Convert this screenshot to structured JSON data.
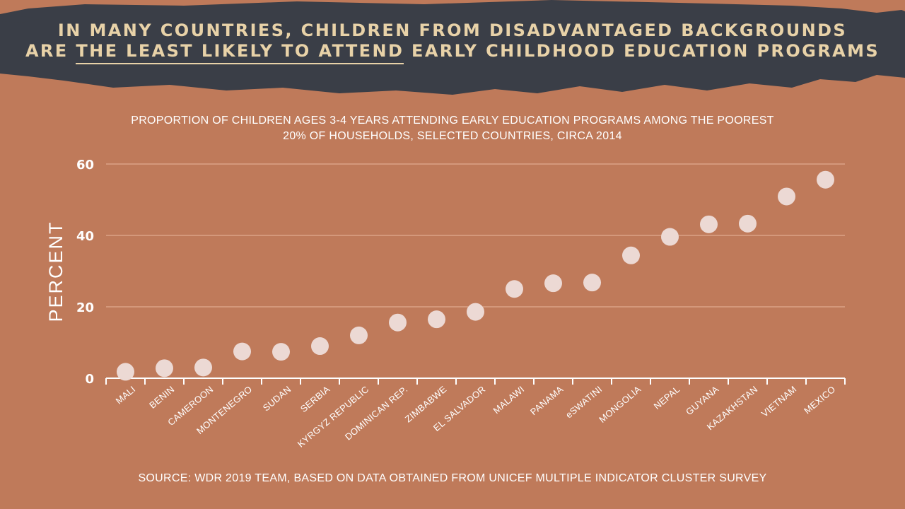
{
  "headline": {
    "line1": "IN MANY COUNTRIES, CHILDREN FROM DISADVANTAGED BACKGROUNDS",
    "line2_pre": "ARE ",
    "line2_emph": "THE LEAST LIKELY TO ATTEND",
    "line2_post": " EARLY CHILDHOOD EDUCATION PROGRAMS"
  },
  "source": "SOURCE: WDR 2019 TEAM, BASED ON DATA OBTAINED FROM UNICEF MULTIPLE INDICATOR CLUSTER SURVEY",
  "colors": {
    "background": "#bf7a5a",
    "banner": "#3a3e47",
    "headline": "#e8d2a8",
    "dot": "#ecd9d4",
    "grid": "#e9b79c"
  },
  "chart_data": {
    "type": "scatter",
    "title_line1": "PROPORTION OF CHILDREN AGES 3-4 YEARS ATTENDING EARLY EDUCATION PROGRAMS AMONG THE POOREST",
    "title_line2": "20% OF HOUSEHOLDS, SELECTED COUNTRIES, CIRCA 2014",
    "xlabel": "",
    "ylabel": "PERCENT",
    "ylim": [
      0,
      60
    ],
    "yticks": [
      0,
      20,
      40,
      60
    ],
    "grid": true,
    "categories": [
      "MALI",
      "BENIN",
      "CAMEROON",
      "MONTENEGRO",
      "SUDAN",
      "SERBIA",
      "KYRGYZ REPUBLIC",
      "DOMINICAN REP.",
      "ZIMBABWE",
      "EL SALVADOR",
      "MALAWI",
      "PANAMA",
      "eSWATINI",
      "MONGOLIA",
      "NEPAL",
      "GUYANA",
      "KAZAKHSTAN",
      "VIETNAM",
      "MEXICO"
    ],
    "values": [
      1.8,
      2.8,
      3.0,
      7.5,
      7.4,
      9.0,
      12.0,
      15.6,
      16.5,
      18.6,
      25.0,
      26.6,
      26.8,
      34.4,
      39.6,
      43.1,
      43.3,
      50.9,
      55.6
    ]
  }
}
